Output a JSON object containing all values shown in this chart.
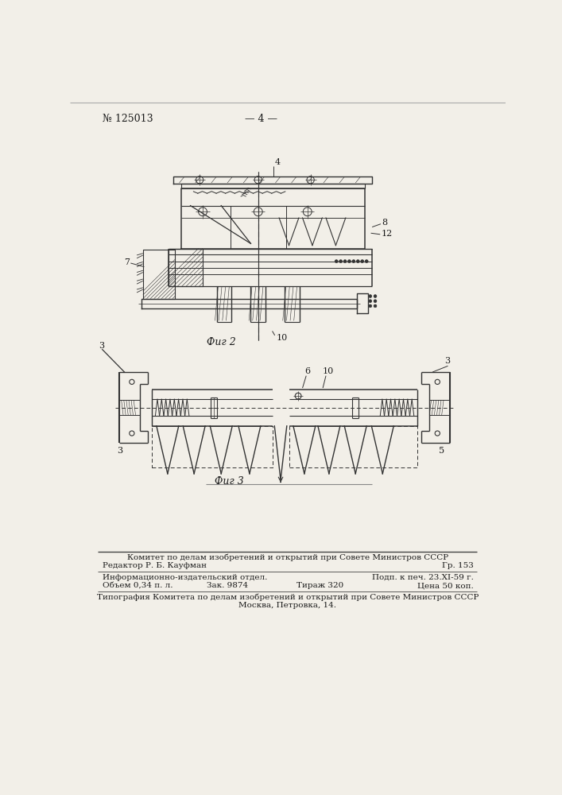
{
  "page_number": "№ 125013",
  "page_label": "— 4 —",
  "background_color": "#f2efe8",
  "fig2_label": "Фиг 2",
  "fig3_label": "Фиг 3",
  "footer_line1": "Комитет по делам изобретений и открытий при Совете Министров СССР",
  "footer_editor": "Редактор Р. Б. Кауфман",
  "footer_gr": "Гр. 153",
  "footer_info": "Информационно-издательский отдел.",
  "footer_podp": "Подп. к печ. 23.XI-59 г.",
  "footer_obem": "Объем 0,34 п. л.",
  "footer_zak": "Зак. 9874",
  "footer_tirazh": "Тираж 320",
  "footer_tsena": "Цена 50 коп.",
  "footer_tip": "Типография Комитета по делам изобретений и открытий при Совете Министров СССР",
  "footer_addr": "Москва, Петровка, 14.",
  "text_color": "#1a1a1a",
  "line_color": "#444444",
  "drawing_color": "#333333"
}
